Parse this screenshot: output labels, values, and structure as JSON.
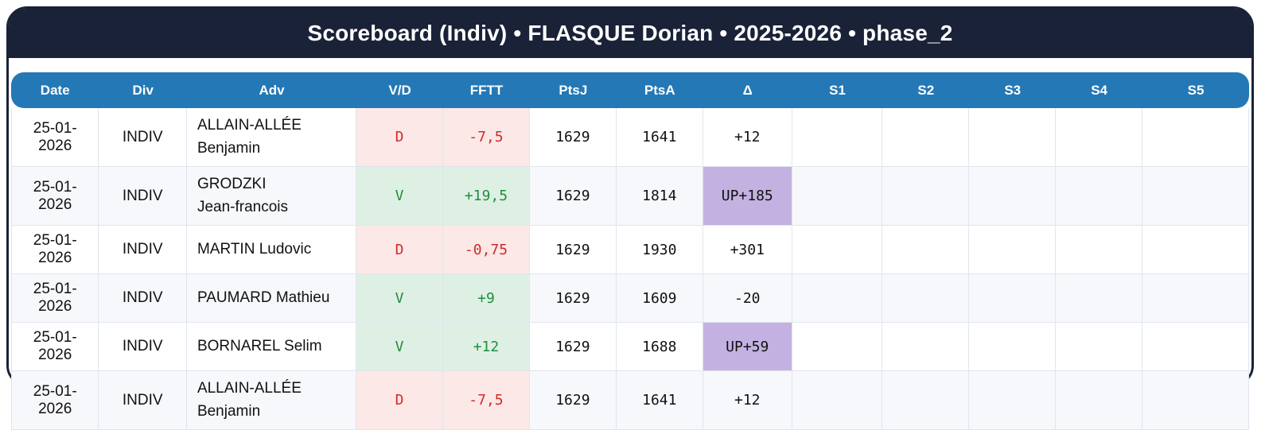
{
  "header": {
    "title": "Scoreboard (Indiv) • FLASQUE Dorian • 2025-2026 • phase_2"
  },
  "table": {
    "columns": [
      "Date",
      "Div",
      "Adv",
      "V/D",
      "FFTT",
      "PtsJ",
      "PtsA",
      "Δ",
      "S1",
      "S2",
      "S3",
      "S4",
      "S5"
    ],
    "rows": [
      {
        "date": "25-01-2026",
        "div": "INDIV",
        "adv": "ALLAIN-ALLÉE\nBenjamin",
        "vd": "D",
        "result": "loss",
        "fftt": "-7,5",
        "ptsj": "1629",
        "ptsa": "1641",
        "delta": "+12",
        "delta_highlight": false,
        "s1": "",
        "s2": "",
        "s3": "",
        "s4": "",
        "s5": ""
      },
      {
        "date": "25-01-2026",
        "div": "INDIV",
        "adv": "GRODZKI\nJean-francois",
        "vd": "V",
        "result": "win",
        "fftt": "+19,5",
        "ptsj": "1629",
        "ptsa": "1814",
        "delta": "UP+185",
        "delta_highlight": true,
        "s1": "",
        "s2": "",
        "s3": "",
        "s4": "",
        "s5": ""
      },
      {
        "date": "25-01-2026",
        "div": "INDIV",
        "adv": "MARTIN Ludovic",
        "vd": "D",
        "result": "loss",
        "fftt": "-0,75",
        "ptsj": "1629",
        "ptsa": "1930",
        "delta": "+301",
        "delta_highlight": false,
        "s1": "",
        "s2": "",
        "s3": "",
        "s4": "",
        "s5": ""
      },
      {
        "date": "25-01-2026",
        "div": "INDIV",
        "adv": "PAUMARD Mathieu",
        "vd": "V",
        "result": "win",
        "fftt": "+9",
        "ptsj": "1629",
        "ptsa": "1609",
        "delta": "-20",
        "delta_highlight": false,
        "s1": "",
        "s2": "",
        "s3": "",
        "s4": "",
        "s5": ""
      },
      {
        "date": "25-01-2026",
        "div": "INDIV",
        "adv": "BORNAREL Selim",
        "vd": "V",
        "result": "win",
        "fftt": "+12",
        "ptsj": "1629",
        "ptsa": "1688",
        "delta": "UP+59",
        "delta_highlight": true,
        "s1": "",
        "s2": "",
        "s3": "",
        "s4": "",
        "s5": ""
      },
      {
        "date": "25-01-2026",
        "div": "INDIV",
        "adv": "ALLAIN-ALLÉE\nBenjamin",
        "vd": "D",
        "result": "loss",
        "fftt": "-7,5",
        "ptsj": "1629",
        "ptsa": "1641",
        "delta": "+12",
        "delta_highlight": false,
        "s1": "",
        "s2": "",
        "s3": "",
        "s4": "",
        "s5": ""
      }
    ]
  },
  "colors": {
    "navy": "#1a2238",
    "accent_blue": "#2478b5",
    "grid": "#dfe5ee",
    "alt_row": "#f7f8fc",
    "win_green": "#1e8e3e",
    "loss_red": "#d02b2b",
    "win_bg": "#def0e3",
    "loss_bg": "#fce8e6",
    "delta_up_bg": "#c3b1e1"
  }
}
